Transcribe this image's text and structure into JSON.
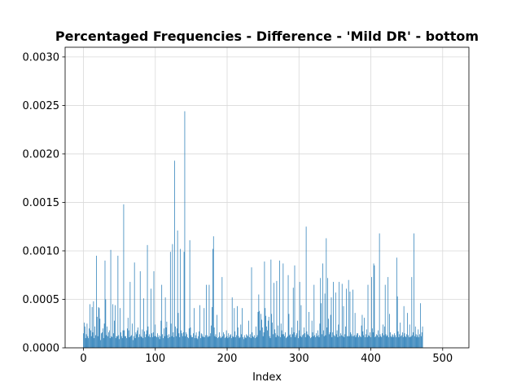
{
  "chart_data": {
    "type": "bar",
    "title": "Percentaged Frequencies - Difference - 'Mild DR' - bottom",
    "xlabel": "Index",
    "ylabel": "",
    "xlim": [
      -25.5,
      536.5
    ],
    "ylim": [
      0,
      0.0031
    ],
    "xticks": [
      0,
      100,
      200,
      300,
      400,
      500
    ],
    "xtick_labels": [
      "0",
      "100",
      "200",
      "300",
      "400",
      "500"
    ],
    "yticks": [
      0,
      0.0005,
      0.001,
      0.0015,
      0.002,
      0.0025,
      0.003
    ],
    "ytick_labels": [
      "0.0000",
      "0.0005",
      "0.0010",
      "0.0015",
      "0.0020",
      "0.0025",
      "0.0030"
    ],
    "grid": true,
    "bar_color": "#1f77b4",
    "x_start": 0,
    "values": [
      0.00015,
      0.00026,
      0.00022,
      0.0001,
      0.00014,
      0.00025,
      0.00012,
      0.0001,
      0.0002,
      0.00045,
      0.00018,
      0.00012,
      0.00042,
      0.00016,
      0.00048,
      0.0001,
      0.00022,
      0.00013,
      0.00095,
      0.00032,
      0.00012,
      0.00042,
      0.00041,
      0.0003,
      8e-05,
      0.00015,
      0.00016,
      0.0002,
      0.0001,
      0.00025,
      0.0009,
      0.0005,
      0.00013,
      0.00022,
      0.00012,
      0.00016,
      0.00018,
      0.0001,
      0.00101,
      0.00012,
      0.00011,
      0.00045,
      0.00015,
      0.00028,
      0.00044,
      0.0001,
      0.00012,
      0.00012,
      0.00095,
      0.00013,
      9e-05,
      0.00041,
      0.00016,
      0.00012,
      0.0001,
      0.00018,
      0.00148,
      0.00018,
      0.00012,
      0.00012,
      0.0001,
      0.0002,
      0.00031,
      0.00018,
      0.00011,
      0.00068,
      0.00012,
      0.00013,
      0.00025,
      8e-05,
      0.00012,
      0.00088,
      0.0001,
      0.00016,
      0.00014,
      0.00018,
      0.00021,
      0.00011,
      0.00014,
      0.00079,
      0.00012,
      0.00011,
      0.00019,
      0.0001,
      0.00051,
      0.00017,
      0.00011,
      0.00014,
      0.00018,
      0.00106,
      0.00022,
      0.00012,
      0.00014,
      0.00011,
      0.00061,
      0.00015,
      0.00011,
      0.00016,
      0.00079,
      0.00012,
      0.00024,
      0.00012,
      0.00011,
      0.00015,
      0.00011,
      0.00013,
      9e-05,
      0.00012,
      0.00028,
      0.00065,
      0.00014,
      0.0001,
      0.0002,
      0.00012,
      0.00052,
      0.00021,
      0.00027,
      0.00013,
      0.0001,
      0.00014,
      0.00011,
      0.00099,
      0.00025,
      0.00012,
      0.00107,
      0.00016,
      0.00011,
      0.00193,
      0.00022,
      0.00012,
      0.0002,
      0.00121,
      0.00036,
      0.00015,
      0.00011,
      0.00102,
      0.00018,
      0.00015,
      0.00012,
      0.00016,
      0.00099,
      0.00244,
      0.00012,
      0.00016,
      0.00014,
      0.00011,
      0.0001,
      0.0002,
      0.00111,
      0.00021,
      0.00013,
      0.00011,
      0.00011,
      0.00015,
      0.00041,
      0.0001,
      0.00013,
      0.00016,
      0.0001,
      9e-05,
      0.00012,
      0.00017,
      0.00044,
      0.0001,
      0.00015,
      0.00014,
      0.00012,
      0.00011,
      0.00041,
      0.00011,
      0.00013,
      0.00065,
      0.00013,
      0.00011,
      0.00012,
      0.00065,
      0.00012,
      0.00015,
      0.00023,
      0.00042,
      0.00102,
      0.00115,
      0.00021,
      0.00012,
      0.00014,
      0.00011,
      0.00034,
      0.0001,
      0.00011,
      0.00016,
      0.00012,
      0.0001,
      0.00011,
      0.00073,
      0.00012,
      0.00016,
      0.00014,
      0.0001,
      0.00011,
      0.00018,
      0.00012,
      0.0001,
      0.00015,
      0.00011,
      0.00013,
      0.00014,
      0.0001,
      0.00052,
      0.00012,
      0.00011,
      0.00041,
      0.00017,
      0.00011,
      0.00013,
      0.00043,
      0.00021,
      0.00012,
      0.0001,
      0.00011,
      0.00024,
      0.00014,
      0.00041,
      0.00011,
      9e-05,
      0.00013,
      0.00011,
      0.0001,
      0.00014,
      0.00013,
      0.00012,
      0.00028,
      0.00011,
      0.00014,
      0.0001,
      0.00083,
      0.00016,
      0.00012,
      0.00011,
      0.00013,
      0.0001,
      0.00022,
      0.00011,
      0.00013,
      0.00037,
      0.00055,
      0.00038,
      0.00018,
      0.00035,
      0.00029,
      0.00021,
      0.00012,
      0.00016,
      0.00089,
      0.00041,
      0.00033,
      0.00022,
      0.00018,
      0.00028,
      0.00032,
      0.00012,
      0.0001,
      0.00091,
      0.00035,
      0.00026,
      0.00014,
      0.00067,
      0.00019,
      0.00015,
      0.00011,
      0.00069,
      0.00013,
      0.00023,
      0.00012,
      0.0009,
      0.00011,
      0.00025,
      0.00018,
      0.00014,
      0.00087,
      0.00014,
      0.00012,
      0.00016,
      0.0001,
      0.00011,
      0.00012,
      0.00075,
      0.00035,
      0.00013,
      0.00014,
      0.00011,
      0.00021,
      0.00014,
      0.00062,
      0.00016,
      0.00085,
      0.00011,
      0.00013,
      0.00015,
      0.00028,
      0.0001,
      0.00018,
      0.00068,
      0.00012,
      0.00044,
      0.00011,
      0.00013,
      0.00014,
      0.00021,
      0.00015,
      0.00011,
      0.00125,
      0.00017,
      0.00014,
      0.00013,
      0.00037,
      0.00012,
      0.0001,
      0.00011,
      0.00028,
      0.00016,
      0.00012,
      0.00065,
      0.00013,
      0.00011,
      0.00015,
      0.00012,
      0.00018,
      0.00013,
      0.00011,
      0.00025,
      0.00072,
      0.00046,
      0.00014,
      0.00087,
      0.00018,
      0.00012,
      0.00056,
      0.00013,
      0.00113,
      0.00021,
      0.00072,
      0.0003,
      0.00014,
      0.00016,
      0.00034,
      0.00052,
      0.00011,
      0.00016,
      0.00068,
      0.00013,
      0.00012,
      0.00057,
      0.00014,
      0.00018,
      0.00011,
      0.00024,
      0.00068,
      0.00012,
      0.00015,
      0.00013,
      0.00066,
      0.00012,
      0.00043,
      0.00011,
      0.00014,
      0.00022,
      0.00061,
      0.00012,
      0.00012,
      0.0007,
      0.00012,
      0.00058,
      0.00016,
      0.00014,
      0.00012,
      0.0006,
      0.00012,
      0.00013,
      0.00036,
      0.00011,
      0.00013,
      0.00015,
      0.00015,
      0.00011,
      0.00013,
      0.00012,
      0.00011,
      0.00023,
      0.00034,
      0.00017,
      0.00013,
      0.00031,
      0.00011,
      0.00014,
      0.00019,
      0.00011,
      0.00065,
      0.00013,
      0.00012,
      0.00016,
      0.00011,
      0.00073,
      0.0002,
      0.00016,
      0.00087,
      0.00085,
      0.00011,
      0.00012,
      0.00014,
      0.00013,
      0.00018,
      0.00011,
      0.00118,
      0.00014,
      0.00012,
      0.00011,
      0.00015,
      0.00024,
      0.00013,
      0.00022,
      0.00065,
      0.00014,
      0.00012,
      0.00013,
      0.00073,
      0.00011,
      0.00035,
      0.00016,
      0.00012,
      0.00011,
      0.00014,
      0.00013,
      0.00011,
      0.00015,
      0.00013,
      0.00011,
      0.00093,
      0.00053,
      0.00017,
      0.00011,
      0.00014,
      0.00026,
      0.00012,
      0.00013,
      0.00016,
      0.00011,
      0.00043,
      0.00015,
      0.00012,
      0.00011,
      0.00014,
      0.00036,
      0.00013,
      0.00011,
      0.00024,
      0.00011,
      0.00012,
      0.00073,
      0.00013,
      0.00016,
      0.00118,
      0.00012,
      0.00022,
      0.00014,
      0.00011,
      0.00013,
      0.00019,
      0.00011,
      0.00014,
      0.00046,
      0.00012,
      0.00016,
      0.00022
    ]
  }
}
